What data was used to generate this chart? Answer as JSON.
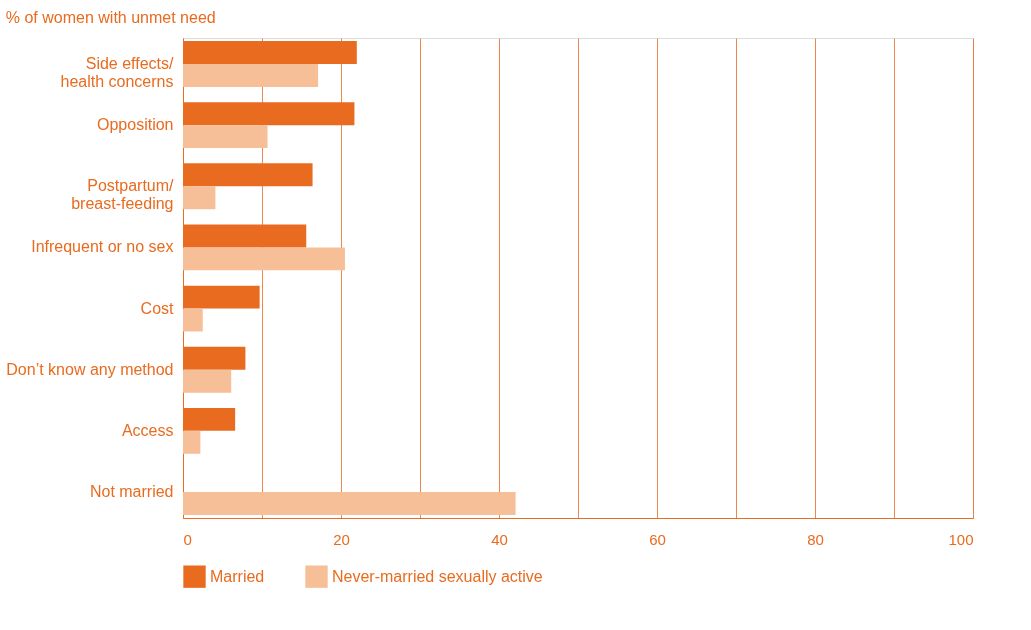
{
  "chart_data": {
    "type": "bar",
    "orientation": "horizontal",
    "title": "% of women with unmet need",
    "categories": [
      "Side effects/\nhealth concerns",
      "Opposition",
      "Postpartum/\nbreast-feeding",
      "Infrequent or no sex",
      "Cost",
      "Don’t know any method",
      "Access",
      "Not married"
    ],
    "series": [
      {
        "name": "Married",
        "color": "#e86b1f",
        "values": [
          22.0,
          21.7,
          16.4,
          15.6,
          9.7,
          7.9,
          6.6,
          null
        ]
      },
      {
        "name": "Never-married sexually active",
        "color": "#f6bf97",
        "values": [
          17.1,
          10.7,
          4.1,
          20.5,
          2.5,
          6.1,
          2.2,
          42.1
        ]
      }
    ],
    "xlim": [
      0,
      100
    ],
    "xticks": [
      0,
      {
        "value": 10,
        "label": null
      },
      20,
      {
        "value": 30,
        "label": null
      },
      40,
      {
        "value": 50,
        "label": null
      },
      60,
      {
        "value": 70,
        "label": null
      },
      80,
      {
        "value": 90,
        "label": null
      },
      100
    ],
    "grid": "x",
    "legend": "bottom"
  }
}
